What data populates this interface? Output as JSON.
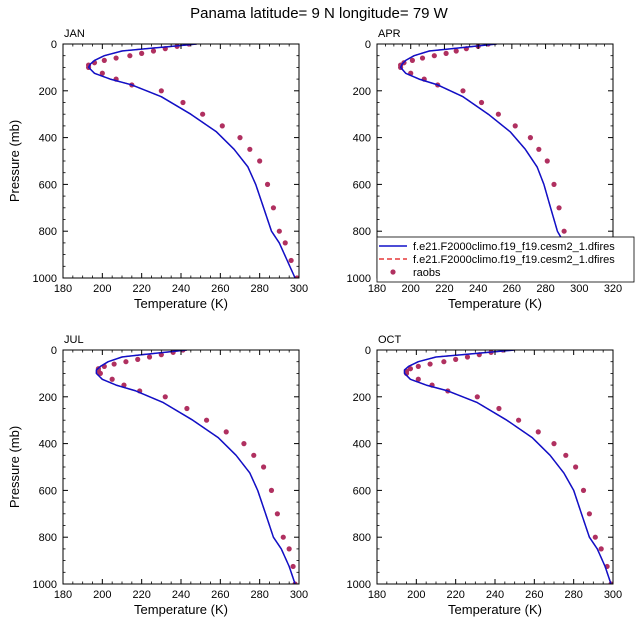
{
  "title": "Panama  latitude= 9 N longitude= 79 W",
  "colors": {
    "model_line": "#1010c8",
    "model_dashed": "#e01010",
    "obs_marker": "#b03060"
  },
  "chart_data": [
    {
      "type": "line",
      "label": "JAN",
      "xlabel": "Temperature (K)",
      "ylabel": "Pressure (mb)",
      "xlim": [
        180,
        300
      ],
      "xticks": [
        180,
        200,
        220,
        240,
        260,
        280,
        300
      ],
      "ylim": [
        1000,
        0
      ],
      "yticks": [
        0,
        200,
        400,
        600,
        800,
        1000
      ],
      "series": [
        {
          "style": "solid",
          "x": [
            248,
            236,
            222,
            210,
            201,
            196,
            194,
            193,
            196,
            204,
            215,
            230,
            245,
            258,
            267,
            274,
            278,
            282,
            286,
            290,
            294,
            298
          ],
          "y": [
            0,
            10,
            20,
            30,
            50,
            70,
            85,
            100,
            125,
            150,
            175,
            225,
            300,
            375,
            450,
            525,
            600,
            700,
            800,
            850,
            925,
            1000
          ]
        },
        {
          "style": "dashed",
          "x": [
            248,
            236,
            222,
            210,
            201,
            196,
            194,
            193,
            196,
            204,
            215,
            230,
            245,
            258,
            267,
            274,
            278,
            282,
            286,
            290,
            294,
            298
          ],
          "y": [
            0,
            10,
            20,
            30,
            50,
            70,
            85,
            100,
            125,
            150,
            175,
            225,
            300,
            375,
            450,
            525,
            600,
            700,
            800,
            850,
            925,
            1000
          ]
        },
        {
          "style": "markers",
          "x": [
            244,
            238,
            232,
            226,
            220,
            214,
            207,
            201,
            196,
            193,
            193,
            200,
            207,
            215,
            230,
            241,
            251,
            261,
            270,
            275,
            280,
            284,
            287,
            290,
            293,
            296,
            299
          ],
          "y": [
            0,
            10,
            20,
            30,
            40,
            50,
            60,
            70,
            80,
            90,
            100,
            125,
            150,
            175,
            200,
            250,
            300,
            350,
            400,
            450,
            500,
            600,
            700,
            800,
            850,
            925,
            1000
          ]
        }
      ]
    },
    {
      "type": "line",
      "label": "APR",
      "xlabel": "Temperature (K)",
      "ylabel": "",
      "xlim": [
        180,
        320
      ],
      "xticks": [
        180,
        200,
        220,
        240,
        260,
        280,
        300,
        320
      ],
      "ylim": [
        1000,
        0
      ],
      "yticks": [
        0,
        200,
        400,
        600,
        800,
        1000
      ],
      "series": [
        {
          "name": "f.e21.F2000climo.f19_f19.cesm2_1.dfires",
          "style": "solid",
          "x": [
            251,
            238,
            224,
            211,
            202,
            197,
            195,
            194,
            197,
            205,
            216,
            231,
            246,
            259,
            268,
            275,
            279,
            283,
            287,
            291,
            295,
            299
          ],
          "y": [
            0,
            10,
            20,
            30,
            50,
            70,
            85,
            100,
            125,
            150,
            175,
            225,
            300,
            375,
            450,
            525,
            600,
            700,
            800,
            850,
            925,
            1000
          ]
        },
        {
          "name": "f.e21.F2000climo.f19_f19.cesm2_1.dfires",
          "style": "dashed",
          "x": [
            251,
            238,
            224,
            211,
            202,
            197,
            195,
            194,
            197,
            205,
            216,
            231,
            246,
            259,
            268,
            275,
            279,
            283,
            287,
            291,
            295,
            299
          ],
          "y": [
            0,
            10,
            20,
            30,
            50,
            70,
            85,
            100,
            125,
            150,
            175,
            225,
            300,
            375,
            450,
            525,
            600,
            700,
            800,
            850,
            925,
            1000
          ]
        },
        {
          "name": "raobs",
          "style": "markers",
          "x": [
            246,
            240,
            233,
            227,
            221,
            214,
            207,
            201,
            196,
            194,
            194,
            200,
            208,
            216,
            231,
            242,
            252,
            262,
            271,
            276,
            281,
            285,
            288,
            291,
            294,
            297,
            300
          ],
          "y": [
            0,
            10,
            20,
            30,
            40,
            50,
            60,
            70,
            80,
            90,
            100,
            125,
            150,
            175,
            200,
            250,
            300,
            350,
            400,
            450,
            500,
            600,
            700,
            800,
            850,
            925,
            1000
          ]
        }
      ],
      "legend": {
        "placement": "bottom-right",
        "entries": [
          {
            "label": "f.e21.F2000climo.f19_f19.cesm2_1.dfires",
            "style": "solid"
          },
          {
            "label": "f.e21.F2000climo.f19_f19.cesm2_1.dfires",
            "style": "dashed"
          },
          {
            "label": "raobs",
            "style": "markers"
          }
        ]
      }
    },
    {
      "type": "line",
      "label": "JUL",
      "xlabel": "Temperature (K)",
      "ylabel": "Pressure (mb)",
      "xlim": [
        180,
        300
      ],
      "xticks": [
        180,
        200,
        220,
        240,
        260,
        280,
        300
      ],
      "ylim": [
        1000,
        0
      ],
      "yticks": [
        0,
        200,
        400,
        600,
        800,
        1000
      ],
      "series": [
        {
          "style": "solid",
          "x": [
            243,
            232,
            220,
            210,
            203,
            199,
            197,
            197,
            200,
            207,
            217,
            231,
            246,
            259,
            268,
            275,
            279,
            283,
            287,
            291,
            295,
            298
          ],
          "y": [
            0,
            10,
            20,
            30,
            50,
            70,
            85,
            100,
            125,
            150,
            175,
            225,
            300,
            375,
            450,
            525,
            600,
            700,
            800,
            850,
            925,
            1000
          ]
        },
        {
          "style": "dashed",
          "x": [
            243,
            232,
            220,
            210,
            203,
            199,
            197,
            197,
            200,
            207,
            217,
            231,
            246,
            259,
            268,
            275,
            279,
            283,
            287,
            291,
            295,
            298
          ],
          "y": [
            0,
            10,
            20,
            30,
            50,
            70,
            85,
            100,
            125,
            150,
            175,
            225,
            300,
            375,
            450,
            525,
            600,
            700,
            800,
            850,
            925,
            1000
          ]
        },
        {
          "style": "markers",
          "x": [
            241,
            236,
            230,
            224,
            218,
            212,
            206,
            201,
            198,
            198,
            199,
            205,
            211,
            219,
            232,
            243,
            253,
            263,
            272,
            277,
            282,
            286,
            289,
            292,
            295,
            297,
            298
          ],
          "y": [
            0,
            10,
            20,
            30,
            40,
            50,
            60,
            70,
            80,
            90,
            100,
            125,
            150,
            175,
            200,
            250,
            300,
            350,
            400,
            450,
            500,
            600,
            700,
            800,
            850,
            925,
            1000
          ]
        }
      ]
    },
    {
      "type": "line",
      "label": "OCT",
      "xlabel": "Temperature (K)",
      "ylabel": "",
      "xlim": [
        180,
        300
      ],
      "xticks": [
        180,
        200,
        220,
        240,
        260,
        280,
        300
      ],
      "ylim": [
        1000,
        0
      ],
      "yticks": [
        0,
        200,
        400,
        600,
        800,
        1000
      ],
      "series": [
        {
          "style": "solid",
          "x": [
            250,
            237,
            223,
            210,
            201,
            196,
            194,
            194,
            197,
            205,
            216,
            231,
            246,
            259,
            268,
            275,
            280,
            284,
            288,
            292,
            296,
            299
          ],
          "y": [
            0,
            10,
            20,
            30,
            50,
            70,
            85,
            100,
            125,
            150,
            175,
            225,
            300,
            375,
            450,
            525,
            600,
            700,
            800,
            850,
            925,
            1000
          ]
        },
        {
          "style": "dashed",
          "x": [
            250,
            237,
            223,
            210,
            201,
            196,
            194,
            194,
            197,
            205,
            216,
            231,
            246,
            259,
            268,
            275,
            280,
            284,
            288,
            292,
            296,
            299
          ],
          "y": [
            0,
            10,
            20,
            30,
            50,
            70,
            85,
            100,
            125,
            150,
            175,
            225,
            300,
            375,
            450,
            525,
            600,
            700,
            800,
            850,
            925,
            1000
          ]
        },
        {
          "style": "markers",
          "x": [
            244,
            238,
            232,
            226,
            220,
            214,
            207,
            201,
            197,
            195,
            195,
            201,
            208,
            216,
            231,
            242,
            252,
            262,
            270,
            276,
            281,
            285,
            288,
            291,
            294,
            297,
            299
          ],
          "y": [
            0,
            10,
            20,
            30,
            40,
            50,
            60,
            70,
            80,
            90,
            100,
            125,
            150,
            175,
            200,
            250,
            300,
            350,
            400,
            450,
            500,
            600,
            700,
            800,
            850,
            925,
            1000
          ]
        }
      ]
    }
  ]
}
